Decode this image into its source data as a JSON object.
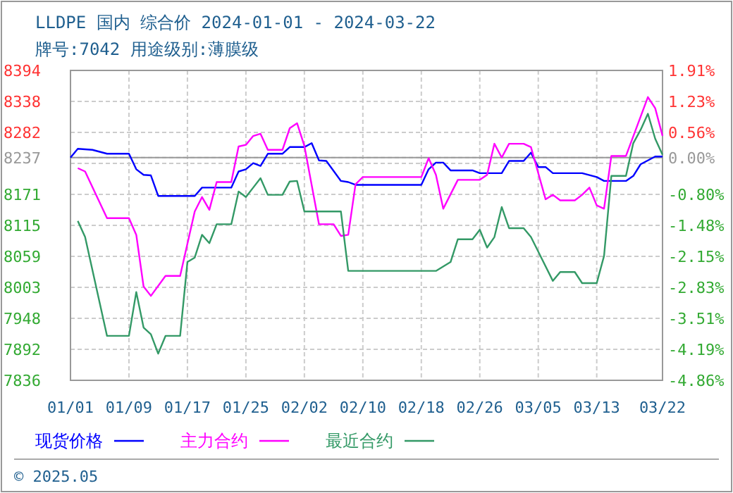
{
  "chart_data": {
    "type": "line",
    "title": "LLDPE 国内 综合价 2024-01-01 - 2024-03-22",
    "subtitle": "牌号:7042 用途级别:薄膜级",
    "annotations": [
      "© 2025.05"
    ],
    "xlim": [
      "2024-01-01",
      "2024-03-22"
    ],
    "xticks": [
      {
        "value": "2024-01-01",
        "label": "01/01"
      },
      {
        "value": "2024-01-09",
        "label": "01/09"
      },
      {
        "value": "2024-01-17",
        "label": "01/17"
      },
      {
        "value": "2024-01-25",
        "label": "01/25"
      },
      {
        "value": "2024-02-02",
        "label": "02/02"
      },
      {
        "value": "2024-02-10",
        "label": "02/10"
      },
      {
        "value": "2024-02-18",
        "label": "02/18"
      },
      {
        "value": "2024-02-26",
        "label": "02/26"
      },
      {
        "value": "2024-03-05",
        "label": "03/05"
      },
      {
        "value": "2024-03-13",
        "label": "03/13"
      },
      {
        "value": "2024-03-22",
        "label": "03/22"
      }
    ],
    "ylim": [
      7836,
      8394
    ],
    "yticks": [
      8394,
      {
        "value": 8338.2,
        "label": "8338"
      },
      {
        "value": 8282.4,
        "label": "8282"
      },
      8237,
      {
        "value": 8226.6,
        "label": null
      },
      {
        "value": 8170.8,
        "label": "8171"
      },
      8115,
      {
        "value": 8059.2,
        "label": "8059"
      },
      {
        "value": 8003.4,
        "label": "8003"
      },
      {
        "value": 7947.6,
        "label": "7948"
      },
      {
        "value": 7891.8,
        "label": "7892"
      },
      7836
    ],
    "y2lim": [
      -4.86,
      1.91
    ],
    "y2ticks": [
      {
        "value": 1.91,
        "label": "1.91%"
      },
      {
        "value": 1.23,
        "label": "1.23%"
      },
      {
        "value": 0.56,
        "label": "0.56%"
      },
      {
        "value": 0,
        "label": "0.00%"
      },
      {
        "value": -0.8,
        "label": "-0.80%"
      },
      {
        "value": -1.48,
        "label": "-1.48%"
      },
      {
        "value": -2.15,
        "label": "-2.15%"
      },
      {
        "value": -2.83,
        "label": "-2.83%"
      },
      {
        "value": -3.51,
        "label": "-3.51%"
      },
      {
        "value": -4.19,
        "label": "-4.19%"
      },
      {
        "value": -4.86,
        "label": "-4.86%"
      }
    ],
    "ref_lines": [
      {
        "axis": "y",
        "value": 8237,
        "color": "#999999"
      }
    ],
    "grid": true,
    "legend": "bottom",
    "line_style": "solid",
    "series": [
      {
        "name": "现货价格",
        "color": "#0000ff",
        "x": [
          "2024-01-01",
          "2024-01-02",
          "2024-01-04",
          "2024-01-06",
          "2024-01-09",
          "2024-01-10",
          "2024-01-11",
          "2024-01-12",
          "2024-01-13",
          "2024-01-18",
          "2024-01-19",
          "2024-01-23",
          "2024-01-24",
          "2024-01-25",
          "2024-01-26",
          "2024-01-27",
          "2024-01-28",
          "2024-01-30",
          "2024-01-31",
          "2024-02-02",
          "2024-02-03",
          "2024-02-04",
          "2024-02-05",
          "2024-02-07",
          "2024-02-08",
          "2024-02-09",
          "2024-02-18",
          "2024-02-19",
          "2024-02-20",
          "2024-02-21",
          "2024-02-22",
          "2024-02-25",
          "2024-02-26",
          "2024-02-29",
          "2024-03-01",
          "2024-03-03",
          "2024-03-04",
          "2024-03-05",
          "2024-03-06",
          "2024-03-07",
          "2024-03-11",
          "2024-03-13",
          "2024-03-14",
          "2024-03-17",
          "2024-03-18",
          "2024-03-19",
          "2024-03-21",
          "2024-03-22"
        ],
        "values": [
          8237,
          8253,
          8251,
          8244,
          8244,
          8216,
          8206,
          8205,
          8168,
          8168,
          8183,
          8183,
          8212,
          8216,
          8227,
          8222,
          8244,
          8244,
          8256,
          8256,
          8263,
          8232,
          8231,
          8195,
          8193,
          8188,
          8188,
          8216,
          8228,
          8228,
          8214,
          8214,
          8209,
          8209,
          8231,
          8231,
          8246,
          8220,
          8220,
          8209,
          8209,
          8202,
          8195,
          8195,
          8204,
          8225,
          8239,
          8239
        ]
      },
      {
        "name": "主力合约",
        "color": "#ff00ff",
        "x": [
          "2024-01-02",
          "2024-01-03",
          "2024-01-06",
          "2024-01-09",
          "2024-01-10",
          "2024-01-11",
          "2024-01-12",
          "2024-01-14",
          "2024-01-16",
          "2024-01-18",
          "2024-01-19",
          "2024-01-20",
          "2024-01-21",
          "2024-01-23",
          "2024-01-24",
          "2024-01-25",
          "2024-01-26",
          "2024-01-27",
          "2024-01-28",
          "2024-01-30",
          "2024-01-31",
          "2024-02-01",
          "2024-02-02",
          "2024-02-04",
          "2024-02-06",
          "2024-02-07",
          "2024-02-08",
          "2024-02-09",
          "2024-02-10",
          "2024-02-18",
          "2024-02-19",
          "2024-02-20",
          "2024-02-21",
          "2024-02-23",
          "2024-02-26",
          "2024-02-27",
          "2024-02-28",
          "2024-02-29",
          "2024-03-01",
          "2024-03-03",
          "2024-03-04",
          "2024-03-06",
          "2024-03-07",
          "2024-03-08",
          "2024-03-10",
          "2024-03-11",
          "2024-03-12",
          "2024-03-13",
          "2024-03-14",
          "2024-03-15",
          "2024-03-17",
          "2024-03-20",
          "2024-03-21",
          "2024-03-22"
        ],
        "values": [
          8218,
          8212,
          8128,
          8128,
          8098,
          8005,
          7988,
          8024,
          8024,
          8140,
          8166,
          8143,
          8193,
          8193,
          8257,
          8260,
          8276,
          8280,
          8251,
          8251,
          8290,
          8299,
          8258,
          8117,
          8117,
          8096,
          8098,
          8189,
          8202,
          8202,
          8236,
          8206,
          8145,
          8197,
          8197,
          8206,
          8262,
          8237,
          8262,
          8262,
          8256,
          8162,
          8170,
          8160,
          8160,
          8170,
          8183,
          8151,
          8145,
          8240,
          8240,
          8346,
          8326,
          8276
        ]
      },
      {
        "name": "最近合约",
        "color": "#339966",
        "x": [
          "2024-01-02",
          "2024-01-03",
          "2024-01-06",
          "2024-01-09",
          "2024-01-10",
          "2024-01-11",
          "2024-01-12",
          "2024-01-13",
          "2024-01-14",
          "2024-01-16",
          "2024-01-17",
          "2024-01-18",
          "2024-01-19",
          "2024-01-20",
          "2024-01-21",
          "2024-01-23",
          "2024-01-24",
          "2024-01-25",
          "2024-01-26",
          "2024-01-27",
          "2024-01-28",
          "2024-01-30",
          "2024-01-31",
          "2024-02-01",
          "2024-02-02",
          "2024-02-07",
          "2024-02-08",
          "2024-02-20",
          "2024-02-22",
          "2024-02-23",
          "2024-02-25",
          "2024-02-26",
          "2024-02-27",
          "2024-02-28",
          "2024-02-29",
          "2024-03-01",
          "2024-03-03",
          "2024-03-04",
          "2024-03-07",
          "2024-03-08",
          "2024-03-10",
          "2024-03-11",
          "2024-03-13",
          "2024-03-14",
          "2024-03-15",
          "2024-03-17",
          "2024-03-18",
          "2024-03-19",
          "2024-03-20",
          "2024-03-21",
          "2024-03-22"
        ],
        "values": [
          8123,
          8094,
          7916,
          7916,
          7995,
          7931,
          7919,
          7884,
          7916,
          7916,
          8049,
          8057,
          8098,
          8083,
          8117,
          8117,
          8176,
          8166,
          8183,
          8200,
          8170,
          8170,
          8194,
          8195,
          8140,
          8140,
          8033,
          8033,
          8049,
          8090,
          8090,
          8107,
          8075,
          8094,
          8148,
          8110,
          8110,
          8094,
          8015,
          8031,
          8031,
          8011,
          8011,
          8060,
          8204,
          8204,
          8263,
          8287,
          8316,
          8271,
          8242
        ]
      }
    ]
  }
}
